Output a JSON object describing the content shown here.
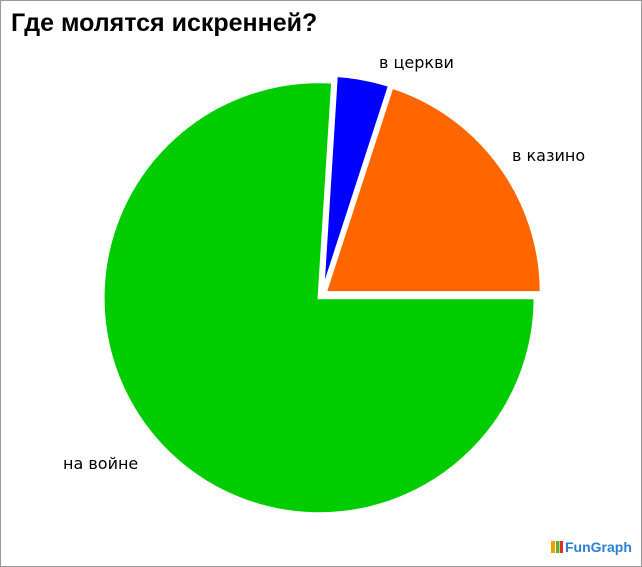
{
  "chart_data": {
    "type": "pie",
    "title": "Где молятся искренней?",
    "slices": [
      {
        "label": "на войне",
        "value": 76,
        "color": "#00cc00"
      },
      {
        "label": "в церкви",
        "value": 4,
        "color": "#0000ff"
      },
      {
        "label": "в казино",
        "value": 20,
        "color": "#ff6600"
      }
    ],
    "exploded": true,
    "legend": "none"
  },
  "logo": "FunGraph"
}
